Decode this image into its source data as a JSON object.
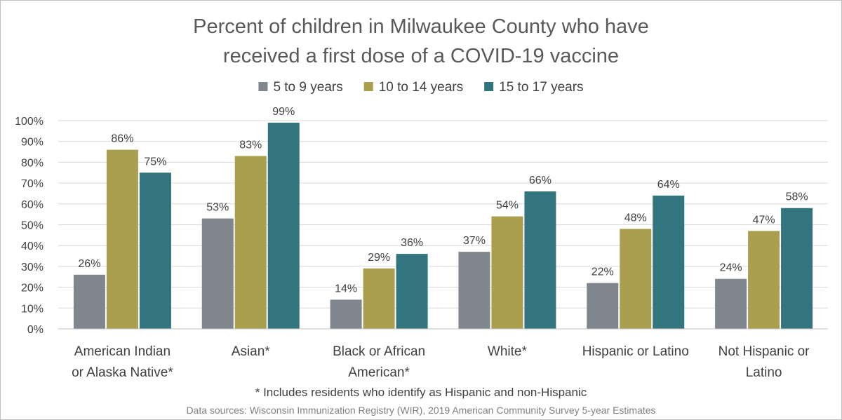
{
  "chart_data": {
    "type": "bar",
    "title_lines": [
      "Percent of children in Milwaukee County who have",
      "received a first dose of a COVID-19 vaccine"
    ],
    "categories": [
      [
        "American Indian",
        "or Alaska Native*"
      ],
      [
        "Asian*"
      ],
      [
        "Black or African",
        "American*"
      ],
      [
        "White*"
      ],
      [
        "Hispanic or Latino"
      ],
      [
        "Not Hispanic or",
        "Latino"
      ]
    ],
    "series": [
      {
        "name": "5 to 9 years",
        "color": "#7f868e",
        "values": [
          26,
          53,
          14,
          37,
          22,
          24
        ],
        "labels": [
          "26%",
          "53%",
          "14%",
          "37%",
          "22%",
          "24%"
        ]
      },
      {
        "name": "10 to 14 years",
        "color": "#aa9f4f",
        "values": [
          86,
          83,
          29,
          54,
          48,
          47
        ],
        "labels": [
          "86%",
          "83%",
          "29%",
          "54%",
          "48%",
          "47%"
        ]
      },
      {
        "name": "15 to 17 years",
        "color": "#33757e",
        "values": [
          75,
          99,
          36,
          66,
          64,
          58
        ],
        "labels": [
          "75%",
          "99%",
          "36%",
          "66%",
          "64%",
          "58%"
        ]
      }
    ],
    "ylim": [
      0,
      100
    ],
    "yticks": [
      0,
      10,
      20,
      30,
      40,
      50,
      60,
      70,
      80,
      90,
      100
    ],
    "ytick_labels": [
      "0%",
      "10%",
      "20%",
      "30%",
      "40%",
      "50%",
      "60%",
      "70%",
      "80%",
      "90%",
      "100%"
    ],
    "grid": true,
    "legend_position": "top-center",
    "footnote": "* Includes residents who identify as Hispanic and non-Hispanic",
    "source": "Data sources:  Wisconsin Immunization Registry (WIR), 2019 American Community Survey 5-year Estimates"
  }
}
